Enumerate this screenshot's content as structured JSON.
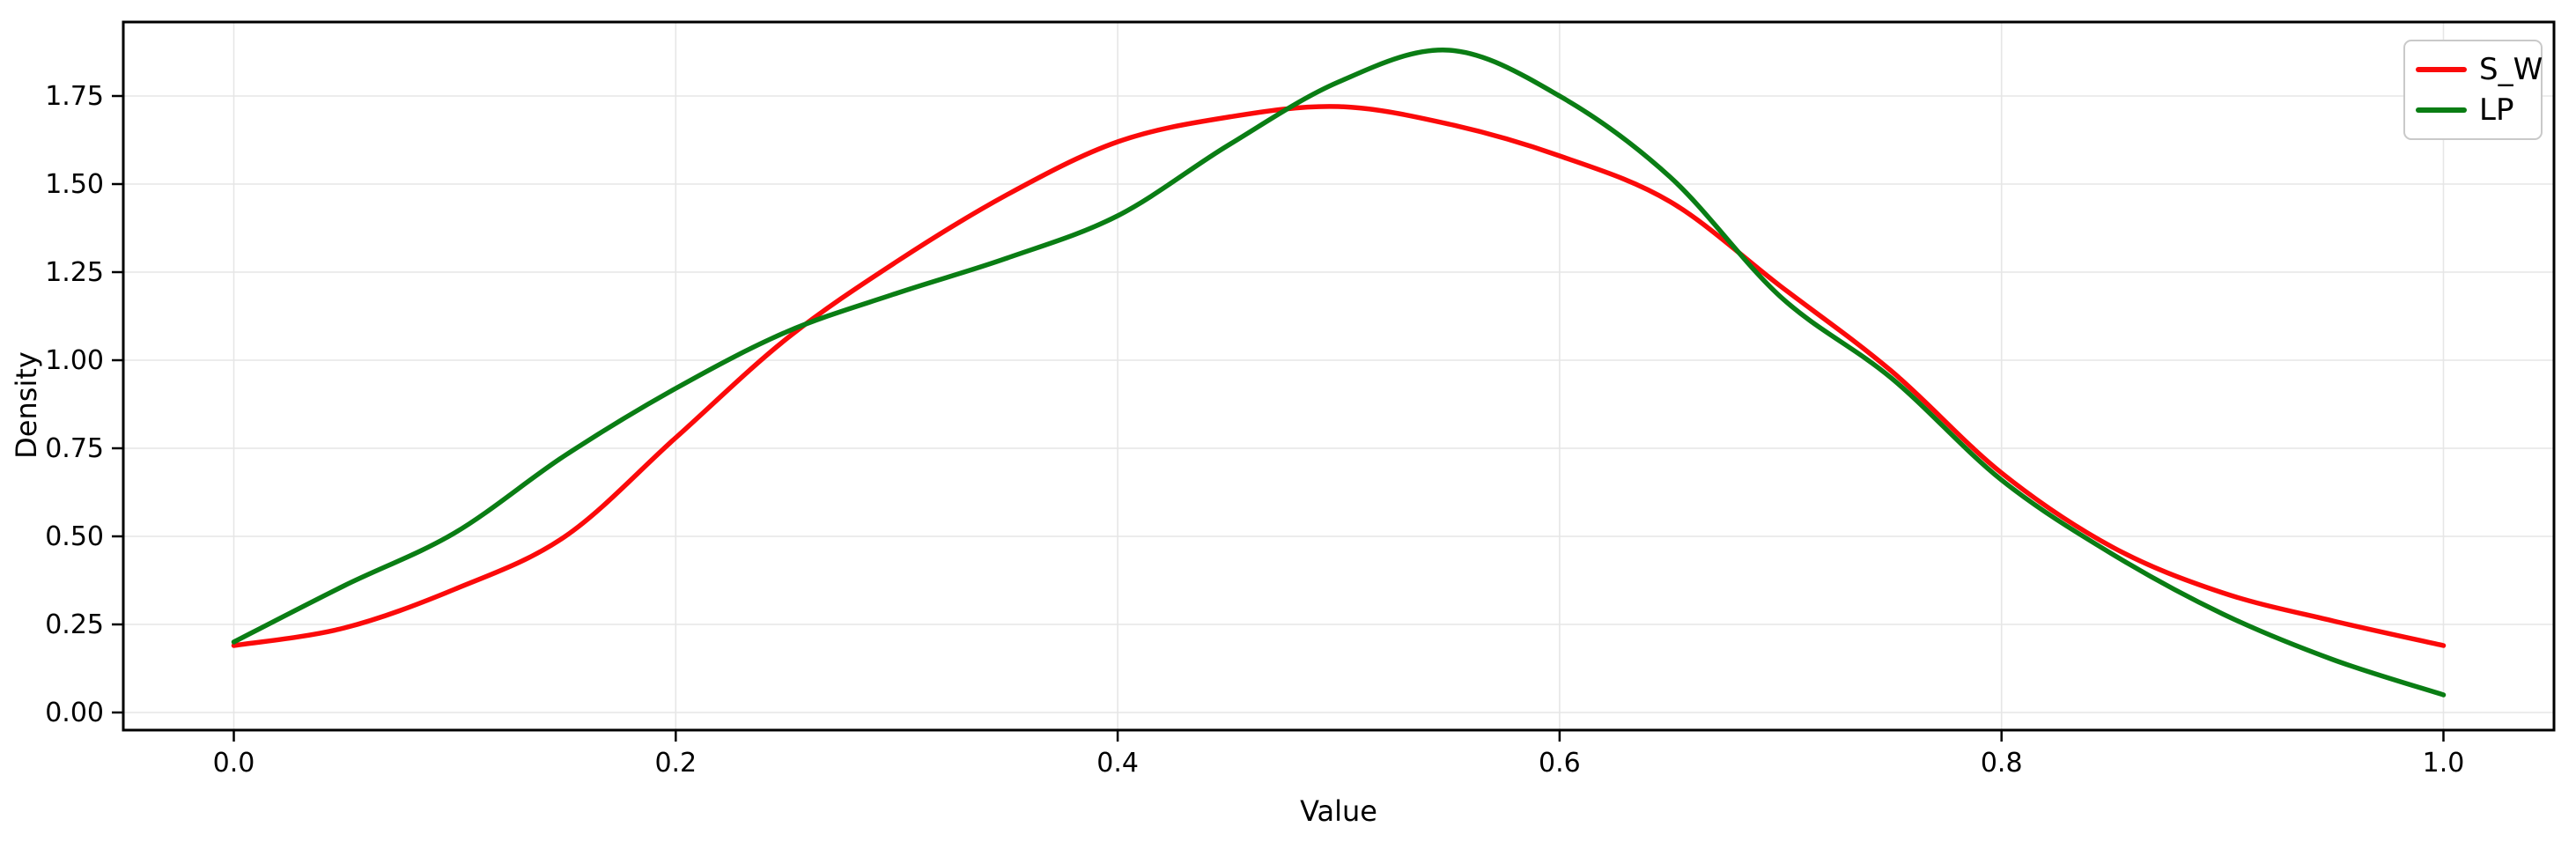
{
  "chart_data": {
    "type": "line",
    "title": "",
    "xlabel": "Value",
    "ylabel": "Density",
    "xlim": [
      -0.05,
      1.05
    ],
    "ylim": [
      -0.05,
      1.96
    ],
    "grid": true,
    "legend_position": "upper right",
    "x_ticks": [
      0.0,
      0.2,
      0.4,
      0.6,
      0.8,
      1.0
    ],
    "x_tick_labels": [
      "0.0",
      "0.2",
      "0.4",
      "0.6",
      "0.8",
      "1.0"
    ],
    "y_ticks": [
      0.0,
      0.25,
      0.5,
      0.75,
      1.0,
      1.25,
      1.5,
      1.75
    ],
    "y_tick_labels": [
      "0.00",
      "0.25",
      "0.50",
      "0.75",
      "1.00",
      "1.25",
      "1.50",
      "1.75"
    ],
    "x": [
      0.0,
      0.05,
      0.1,
      0.15,
      0.2,
      0.25,
      0.3,
      0.35,
      0.4,
      0.45,
      0.5,
      0.55,
      0.6,
      0.65,
      0.7,
      0.75,
      0.8,
      0.85,
      0.9,
      0.95,
      1.0
    ],
    "series": [
      {
        "name": "S_W",
        "color": "#fb0a0a",
        "values": [
          0.19,
          0.24,
          0.35,
          0.5,
          0.78,
          1.06,
          1.28,
          1.47,
          1.62,
          1.69,
          1.72,
          1.67,
          1.58,
          1.45,
          1.21,
          0.97,
          0.68,
          0.47,
          0.34,
          0.26,
          0.19
        ]
      },
      {
        "name": "LP",
        "color": "#0a7d14",
        "values": [
          0.2,
          0.36,
          0.51,
          0.73,
          0.92,
          1.08,
          1.19,
          1.29,
          1.41,
          1.61,
          1.79,
          1.88,
          1.75,
          1.52,
          1.18,
          0.95,
          0.66,
          0.45,
          0.28,
          0.15,
          0.05
        ]
      }
    ],
    "colors": {
      "grid": "#e6e6e6",
      "spine": "#000000",
      "tick_text": "#000000",
      "legend_border": "#c9c9c9",
      "background": "#ffffff"
    }
  }
}
